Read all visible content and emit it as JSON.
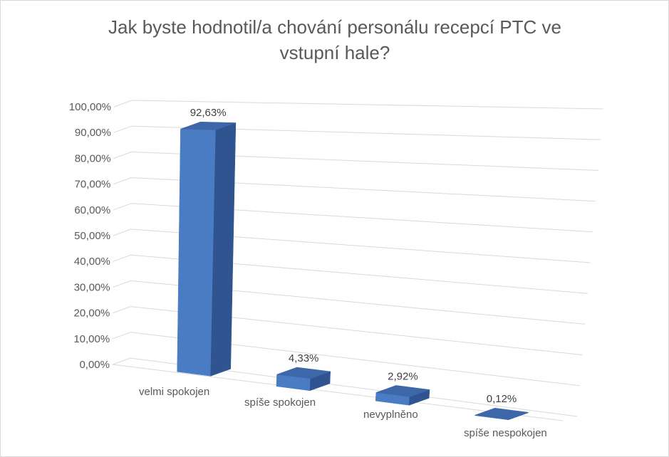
{
  "chart_data": {
    "type": "bar",
    "title": "Jak byste hodnotil/a chování personálu recepcí PTC ve vstupní hale?",
    "categories": [
      "velmi spokojen",
      "spíše spokojen",
      "nevyplněno",
      "spíše nespokojen"
    ],
    "values": [
      92.63,
      4.33,
      2.92,
      0.12
    ],
    "data_labels": [
      "92,63%",
      "4,33%",
      "2,92%",
      "0,12%"
    ],
    "ylim": [
      0,
      100
    ],
    "yticks": [
      "0,00%",
      "10,00%",
      "20,00%",
      "30,00%",
      "40,00%",
      "50,00%",
      "60,00%",
      "70,00%",
      "80,00%",
      "90,00%",
      "100,00%"
    ],
    "xlabel": "",
    "ylabel": "",
    "grid": true,
    "legend": "none",
    "style": "3d-column",
    "colors": {
      "front": "#4a7cc4",
      "side": "#2f5490",
      "top": "#3d67a8",
      "grid": "#d9d9d9",
      "text": "#595959"
    }
  }
}
